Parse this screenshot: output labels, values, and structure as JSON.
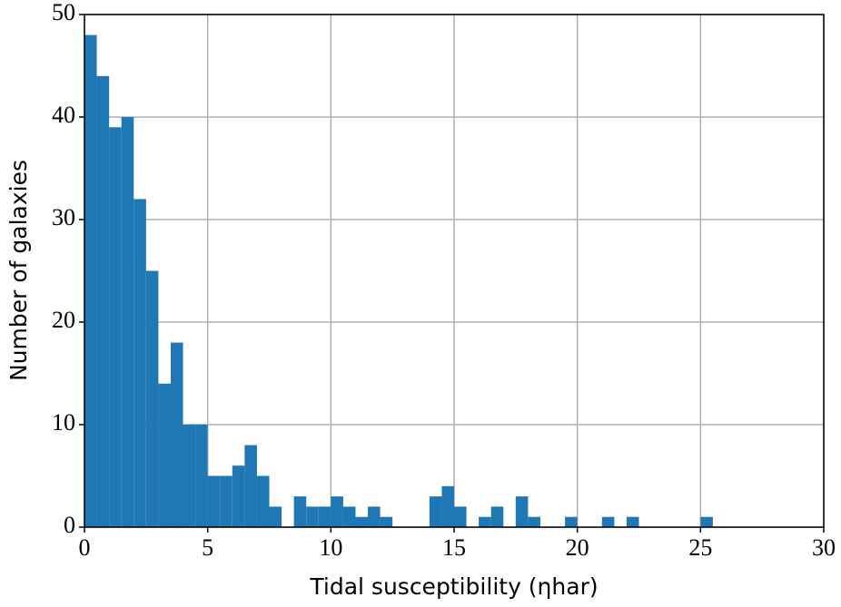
{
  "chart_data": {
    "type": "histogram",
    "x_label": "Tidal susceptibility (ηhar)",
    "y_label": "Number of galaxies",
    "bins": [
      0,
      0.5,
      1,
      1.5,
      2,
      2.5,
      3,
      3.5,
      4,
      4.5,
      5,
      5.5,
      6,
      6.5,
      7,
      7.5,
      8,
      8.5,
      9,
      9.5,
      10,
      10.5,
      11,
      11.5,
      12,
      12.5,
      13,
      13.5,
      14,
      14.5,
      15,
      15.5,
      16,
      16.5,
      17,
      17.5,
      18,
      18.5,
      19,
      19.5,
      20,
      20.5,
      21,
      21.5,
      22,
      22.5,
      23,
      23.5,
      24,
      24.5,
      25,
      25.5
    ],
    "values": [
      48,
      44,
      39,
      40,
      32,
      25,
      14,
      18,
      10,
      10,
      5,
      5,
      6,
      8,
      5,
      2,
      0,
      3,
      2,
      2,
      3,
      2,
      1,
      2,
      1,
      0,
      0,
      0,
      3,
      4,
      2,
      0,
      1,
      2,
      0,
      3,
      1,
      0,
      0,
      1,
      0,
      0,
      1,
      0,
      1,
      0,
      0,
      0,
      0,
      0,
      1
    ],
    "color": "#1f77b4",
    "xlim": [
      0,
      30
    ],
    "xticks": [
      0,
      5,
      10,
      15,
      20,
      25,
      30
    ],
    "ylim": [
      0,
      50
    ],
    "yticks": [
      0,
      10,
      20,
      30,
      40,
      50
    ],
    "grid": true
  }
}
